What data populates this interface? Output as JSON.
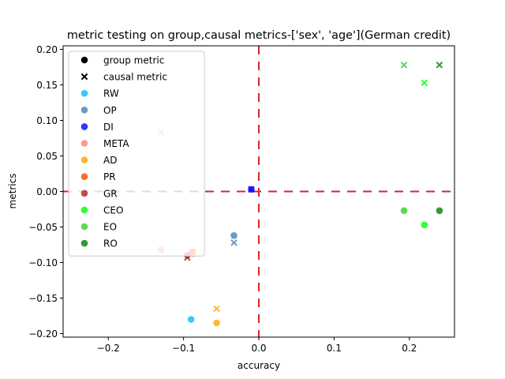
{
  "chart_data": {
    "type": "scatter",
    "title": "metric testing on group,causal metrics-['sex', 'age'](German credit)",
    "xlabel": "accuracy",
    "ylabel": "metrics",
    "xlim": [
      -0.26,
      0.26
    ],
    "ylim": [
      -0.205,
      0.205
    ],
    "xticks": [
      -0.2,
      -0.1,
      0.0,
      0.1,
      0.2
    ],
    "xtick_labels": [
      "−0.2",
      "−0.1",
      "0.0",
      "0.1",
      "0.2"
    ],
    "yticks": [
      -0.2,
      -0.15,
      -0.1,
      -0.05,
      0.0,
      0.05,
      0.1,
      0.15,
      0.2
    ],
    "ytick_labels": [
      "−0.20",
      "−0.15",
      "−0.10",
      "−0.05",
      "0.00",
      "0.05",
      "0.10",
      "0.15",
      "0.20"
    ],
    "grid": false,
    "legend_position": "upper-left",
    "reference_lines": {
      "x": 0,
      "y": 0,
      "color": "#d62728",
      "style": "dashed"
    },
    "marker_legend": [
      {
        "label": "group metric",
        "marker": "circle"
      },
      {
        "label": "causal metric",
        "marker": "x"
      }
    ],
    "series": [
      {
        "name": "RW",
        "color": "#00bfff",
        "group": [
          [
            -0.09,
            -0.18
          ]
        ],
        "causal": [
          [
            -0.09,
            -0.088
          ]
        ]
      },
      {
        "name": "OP",
        "color": "#4682b4",
        "group": [
          [
            -0.033,
            -0.062
          ]
        ],
        "causal": [
          [
            -0.033,
            -0.072
          ]
        ]
      },
      {
        "name": "DI",
        "color": "#0000ff",
        "group": [
          [
            -0.01,
            0.003
          ]
        ],
        "causal": [
          [
            -0.01,
            0.003
          ]
        ]
      },
      {
        "name": "META",
        "color": "#fa8072",
        "group": [
          [
            -0.13,
            -0.082
          ]
        ],
        "causal": [
          [
            -0.13,
            0.083
          ]
        ]
      },
      {
        "name": "AD",
        "color": "#ffa500",
        "group": [
          [
            -0.056,
            -0.185
          ]
        ],
        "causal": [
          [
            -0.056,
            -0.165
          ]
        ]
      },
      {
        "name": "PR",
        "color": "#ff4500",
        "group": [
          [
            -0.088,
            -0.085
          ]
        ],
        "causal": [
          [
            -0.088,
            -0.085
          ]
        ]
      },
      {
        "name": "GR",
        "color": "#b22222",
        "group": [
          [
            -0.095,
            -0.09
          ]
        ],
        "causal": [
          [
            -0.095,
            -0.093
          ]
        ]
      },
      {
        "name": "CEO",
        "color": "#00ff00",
        "group": [
          [
            0.22,
            -0.047
          ]
        ],
        "causal": [
          [
            0.22,
            0.153
          ]
        ]
      },
      {
        "name": "EO",
        "color": "#32cd32",
        "group": [
          [
            0.193,
            -0.027
          ]
        ],
        "causal": [
          [
            0.193,
            0.178
          ]
        ]
      },
      {
        "name": "RO",
        "color": "#008000",
        "group": [
          [
            0.24,
            -0.027
          ]
        ],
        "causal": [
          [
            0.24,
            0.178
          ]
        ]
      }
    ]
  }
}
